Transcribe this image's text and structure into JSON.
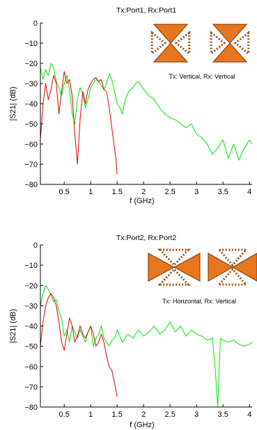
{
  "chart_data": [
    {
      "type": "line",
      "title": "Tx:Port1, Rx:Port1",
      "xlabel": "f (GHz)",
      "ylabel": "|S21| (dB)",
      "xlim": [
        0.05,
        4.05
      ],
      "ylim": [
        -80,
        0
      ],
      "xticks": [
        "0.5",
        "1",
        "1.5",
        "2",
        "2.5",
        "3",
        "3.5",
        "4"
      ],
      "yticks": [
        "0",
        "−10",
        "−20",
        "−30",
        "−40",
        "−50",
        "−60",
        "−70",
        "−80"
      ],
      "grid": false,
      "annotation": "Tx: Vertical, Rx: Vertical",
      "colors": {
        "green_series": "#00e600",
        "red_series": "#e00000",
        "antenna_fill": "#e8761e",
        "antenna_stroke": "#8b4513",
        "dot_color": "#9b4a10"
      },
      "series": [
        {
          "color": "#00e600",
          "x": [
            0.05,
            0.1,
            0.15,
            0.2,
            0.25,
            0.3,
            0.35,
            0.4,
            0.45,
            0.5,
            0.55,
            0.6,
            0.65,
            0.7,
            0.75,
            0.8,
            0.85,
            0.9,
            0.95,
            1.0,
            1.05,
            1.1,
            1.15,
            1.2,
            1.25,
            1.3,
            1.35,
            1.4,
            1.45,
            1.5,
            1.55,
            1.6,
            1.65,
            1.7,
            1.75,
            1.8,
            1.85,
            1.9,
            1.95,
            2.0,
            2.1,
            2.2,
            2.3,
            2.4,
            2.5,
            2.6,
            2.7,
            2.8,
            2.9,
            3.0,
            3.1,
            3.2,
            3.3,
            3.4,
            3.5,
            3.6,
            3.7,
            3.8,
            3.9,
            4.0,
            4.05
          ],
          "y": [
            -22,
            -28,
            -23,
            -26,
            -20,
            -22,
            -29,
            -32,
            -36,
            -30,
            -26,
            -33,
            -45,
            -50,
            -38,
            -32,
            -35,
            -42,
            -38,
            -32,
            -30,
            -28,
            -29,
            -31,
            -33,
            -30,
            -25,
            -28,
            -34,
            -40,
            -42,
            -45,
            -38,
            -35,
            -33,
            -32,
            -30,
            -29,
            -31,
            -33,
            -36,
            -38,
            -42,
            -45,
            -47,
            -48,
            -50,
            -52,
            -50,
            -55,
            -57,
            -60,
            -65,
            -62,
            -58,
            -67,
            -60,
            -68,
            -62,
            -58,
            -60
          ]
        },
        {
          "color": "#e00000",
          "x": [
            0.05,
            0.1,
            0.15,
            0.2,
            0.25,
            0.3,
            0.35,
            0.4,
            0.45,
            0.5,
            0.55,
            0.6,
            0.65,
            0.7,
            0.75,
            0.8,
            0.85,
            0.9,
            0.95,
            1.0,
            1.05,
            1.1,
            1.15,
            1.2,
            1.25,
            1.3,
            1.35,
            1.4,
            1.45,
            1.48,
            1.5
          ],
          "y": [
            -58,
            -40,
            -30,
            -38,
            -33,
            -26,
            -30,
            -45,
            -34,
            -24,
            -30,
            -28,
            -36,
            -55,
            -70,
            -48,
            -34,
            -40,
            -33,
            -30,
            -28,
            -27,
            -29,
            -28,
            -33,
            -34,
            -42,
            -52,
            -62,
            -68,
            -75
          ]
        }
      ]
    },
    {
      "type": "line",
      "title": "Tx:Port2, Rx:Port2",
      "xlabel": "f (GHz)",
      "ylabel": "|S21| (dB)",
      "xlim": [
        0.05,
        4.05
      ],
      "ylim": [
        -80,
        0
      ],
      "xticks": [
        "0.5",
        "1",
        "1.5",
        "2",
        "2.5",
        "3",
        "3.5",
        "4"
      ],
      "yticks": [
        "0",
        "−10",
        "−20",
        "−30",
        "−40",
        "−50",
        "−60",
        "−70",
        "−80"
      ],
      "grid": false,
      "annotation": "Tx: Horizontal, Rx: Vertical",
      "colors": {
        "green_series": "#00e600",
        "red_series": "#e00000",
        "antenna_fill": "#e8761e",
        "antenna_stroke": "#8b4513",
        "dot_color": "#9b4a10"
      },
      "series": [
        {
          "color": "#00e600",
          "x": [
            0.05,
            0.1,
            0.15,
            0.2,
            0.25,
            0.3,
            0.35,
            0.4,
            0.45,
            0.5,
            0.55,
            0.6,
            0.65,
            0.7,
            0.75,
            0.8,
            0.85,
            0.9,
            0.95,
            1.0,
            1.05,
            1.1,
            1.15,
            1.2,
            1.25,
            1.3,
            1.35,
            1.4,
            1.45,
            1.5,
            1.6,
            1.7,
            1.8,
            1.9,
            2.0,
            2.1,
            2.2,
            2.3,
            2.4,
            2.5,
            2.6,
            2.7,
            2.8,
            2.9,
            3.0,
            3.1,
            3.2,
            3.3,
            3.35,
            3.4,
            3.45,
            3.5,
            3.6,
            3.7,
            3.8,
            3.9,
            4.0,
            4.05
          ],
          "y": [
            -30,
            -24,
            -20,
            -22,
            -25,
            -28,
            -27,
            -33,
            -36,
            -45,
            -42,
            -48,
            -40,
            -43,
            -46,
            -42,
            -45,
            -48,
            -43,
            -40,
            -50,
            -46,
            -44,
            -40,
            -46,
            -48,
            -50,
            -47,
            -46,
            -42,
            -48,
            -44,
            -46,
            -42,
            -45,
            -43,
            -40,
            -44,
            -42,
            -38,
            -43,
            -40,
            -45,
            -42,
            -44,
            -45,
            -47,
            -46,
            -60,
            -80,
            -46,
            -47,
            -48,
            -47,
            -49,
            -50,
            -49,
            -48
          ]
        },
        {
          "color": "#e00000",
          "x": [
            0.05,
            0.1,
            0.15,
            0.2,
            0.25,
            0.3,
            0.35,
            0.4,
            0.45,
            0.5,
            0.55,
            0.6,
            0.65,
            0.7,
            0.75,
            0.8,
            0.85,
            0.9,
            0.95,
            1.0,
            1.05,
            1.1,
            1.15,
            1.2,
            1.25,
            1.3,
            1.35,
            1.4,
            1.45,
            1.5
          ],
          "y": [
            -50,
            -38,
            -30,
            -26,
            -24,
            -26,
            -30,
            -38,
            -48,
            -52,
            -44,
            -36,
            -40,
            -48,
            -45,
            -40,
            -44,
            -46,
            -43,
            -40,
            -44,
            -50,
            -48,
            -44,
            -48,
            -55,
            -60,
            -62,
            -68,
            -75
          ]
        }
      ]
    }
  ]
}
